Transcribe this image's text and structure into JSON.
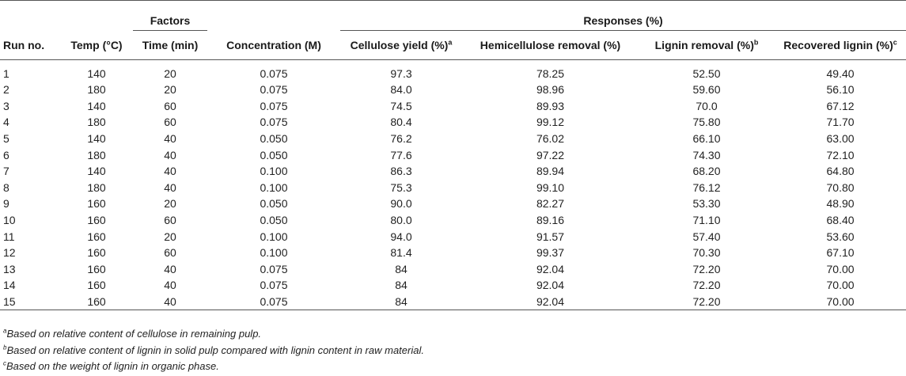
{
  "header": {
    "factors_label": "Factors",
    "responses_label": "Responses (%)",
    "columns": [
      {
        "label": "Run no.",
        "sup": ""
      },
      {
        "label": "Temp (°C)",
        "sup": ""
      },
      {
        "label": "Time (min)",
        "sup": ""
      },
      {
        "label": "Concentration (M)",
        "sup": ""
      },
      {
        "label": "Cellulose yield (%)",
        "sup": "a"
      },
      {
        "label": "Hemicellulose removal (%)",
        "sup": ""
      },
      {
        "label": "Lignin removal (%)",
        "sup": "b"
      },
      {
        "label": "Recovered lignin (%)",
        "sup": "c"
      }
    ]
  },
  "rows": [
    [
      "1",
      "140",
      "20",
      "0.075",
      "97.3",
      "78.25",
      "52.50",
      "49.40"
    ],
    [
      "2",
      "180",
      "20",
      "0.075",
      "84.0",
      "98.96",
      "59.60",
      "56.10"
    ],
    [
      "3",
      "140",
      "60",
      "0.075",
      "74.5",
      "89.93",
      "70.0",
      "67.12"
    ],
    [
      "4",
      "180",
      "60",
      "0.075",
      "80.4",
      "99.12",
      "75.80",
      "71.70"
    ],
    [
      "5",
      "140",
      "40",
      "0.050",
      "76.2",
      "76.02",
      "66.10",
      "63.00"
    ],
    [
      "6",
      "180",
      "40",
      "0.050",
      "77.6",
      "97.22",
      "74.30",
      "72.10"
    ],
    [
      "7",
      "140",
      "40",
      "0.100",
      "86.3",
      "89.94",
      "68.20",
      "64.80"
    ],
    [
      "8",
      "180",
      "40",
      "0.100",
      "75.3",
      "99.10",
      "76.12",
      "70.80"
    ],
    [
      "9",
      "160",
      "20",
      "0.050",
      "90.0",
      "82.27",
      "53.30",
      "48.90"
    ],
    [
      "10",
      "160",
      "60",
      "0.050",
      "80.0",
      "89.16",
      "71.10",
      "68.40"
    ],
    [
      "11",
      "160",
      "20",
      "0.100",
      "94.0",
      "91.57",
      "57.40",
      "53.60"
    ],
    [
      "12",
      "160",
      "60",
      "0.100",
      "81.4",
      "99.37",
      "70.30",
      "67.10"
    ],
    [
      "13",
      "160",
      "40",
      "0.075",
      "84",
      "92.04",
      "72.20",
      "70.00"
    ],
    [
      "14",
      "160",
      "40",
      "0.075",
      "84",
      "92.04",
      "72.20",
      "70.00"
    ],
    [
      "15",
      "160",
      "40",
      "0.075",
      "84",
      "92.04",
      "72.20",
      "70.00"
    ]
  ],
  "footnotes": [
    {
      "mark": "a",
      "text": "Based on relative content of cellulose in remaining pulp."
    },
    {
      "mark": "b",
      "text": "Based on relative content of lignin in solid pulp compared with lignin content in raw material."
    },
    {
      "mark": "c",
      "text": "Based on the weight of lignin in organic phase."
    }
  ]
}
